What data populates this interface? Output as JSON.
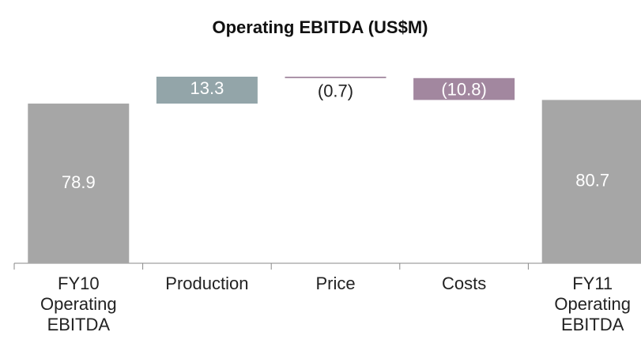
{
  "chart_data": {
    "type": "waterfall",
    "title": "Operating EBITDA (US$M)",
    "categories": [
      "FY10 Operating EBITDA",
      "Production",
      "Price",
      "Costs",
      "FY11 Operating EBITDA"
    ],
    "values": [
      78.9,
      13.3,
      -0.7,
      -10.8,
      80.7
    ],
    "value_labels": [
      "78.9",
      "13.3",
      "(0.7)",
      "(10.8)",
      "80.7"
    ],
    "colors": [
      "#a6a6a6",
      "#93a5a9",
      "#a2879f",
      "#a2879f",
      "#a6a6a6"
    ]
  }
}
